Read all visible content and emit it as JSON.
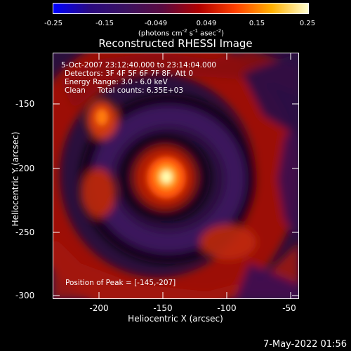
{
  "colorbar": {
    "ticks": [
      "-0.25",
      "-0.15",
      "-0.049",
      "0.049",
      "0.15",
      "0.25"
    ],
    "units": "(photons cm^-2 s^-1 asec^-2)",
    "colors": [
      "#0000ff",
      "#2a0a80",
      "#3b1260",
      "#5a0a40",
      "#b00000",
      "#ff4000",
      "#ffb000",
      "#ffffd0"
    ]
  },
  "title": "Reconstructed RHESSI Image",
  "annotation": {
    "line1": "5-Oct-2007 23:12:40.000 to 23:14:04.000",
    "line2": "Detectors: 3F 4F 5F 6F 7F 8F, Att 0",
    "line3": "Energy Range: 3.0 - 6.0 keV",
    "line4_a": "Clean",
    "line4_b": "Total counts: 6.35E+03",
    "peak": "Position of Peak = [-145,-207]"
  },
  "axes": {
    "xlabel": "Heliocentric X (arcsec)",
    "ylabel": "Heliocentric Y (arcsec)",
    "xticks": [
      "-200",
      "-150",
      "-100",
      "-50"
    ],
    "yticks": [
      "-150",
      "-200",
      "-250",
      "-300"
    ]
  },
  "image": {
    "xrange": [
      -234,
      -41
    ],
    "yrange": [
      -300,
      -107
    ],
    "peak": [
      -145,
      -207
    ]
  },
  "timestamp": "7-May-2022 01:56"
}
